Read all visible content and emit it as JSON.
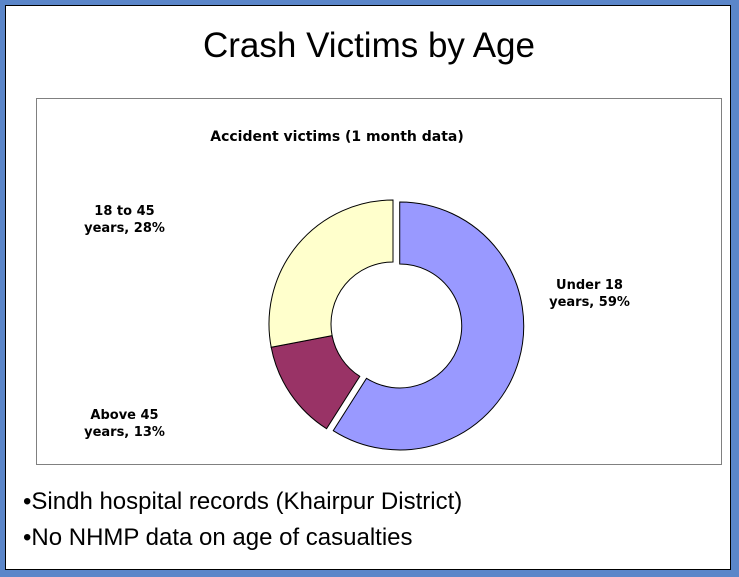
{
  "title": "Crash Victims by Age",
  "chart_data": {
    "type": "donut",
    "title": "Accident victims (1 month data)",
    "values": [
      59,
      13,
      28
    ],
    "value_labels": [
      "Under 18 years, 59%",
      "Above 45 years, 13%",
      "18 to 45 years, 28%"
    ],
    "colors": [
      "#9999ff",
      "#993366",
      "#ffffcc"
    ]
  },
  "bullets": [
    "•Sindh hospital records (Khairpur District)",
    "•No NHMP data on age of casualties"
  ]
}
